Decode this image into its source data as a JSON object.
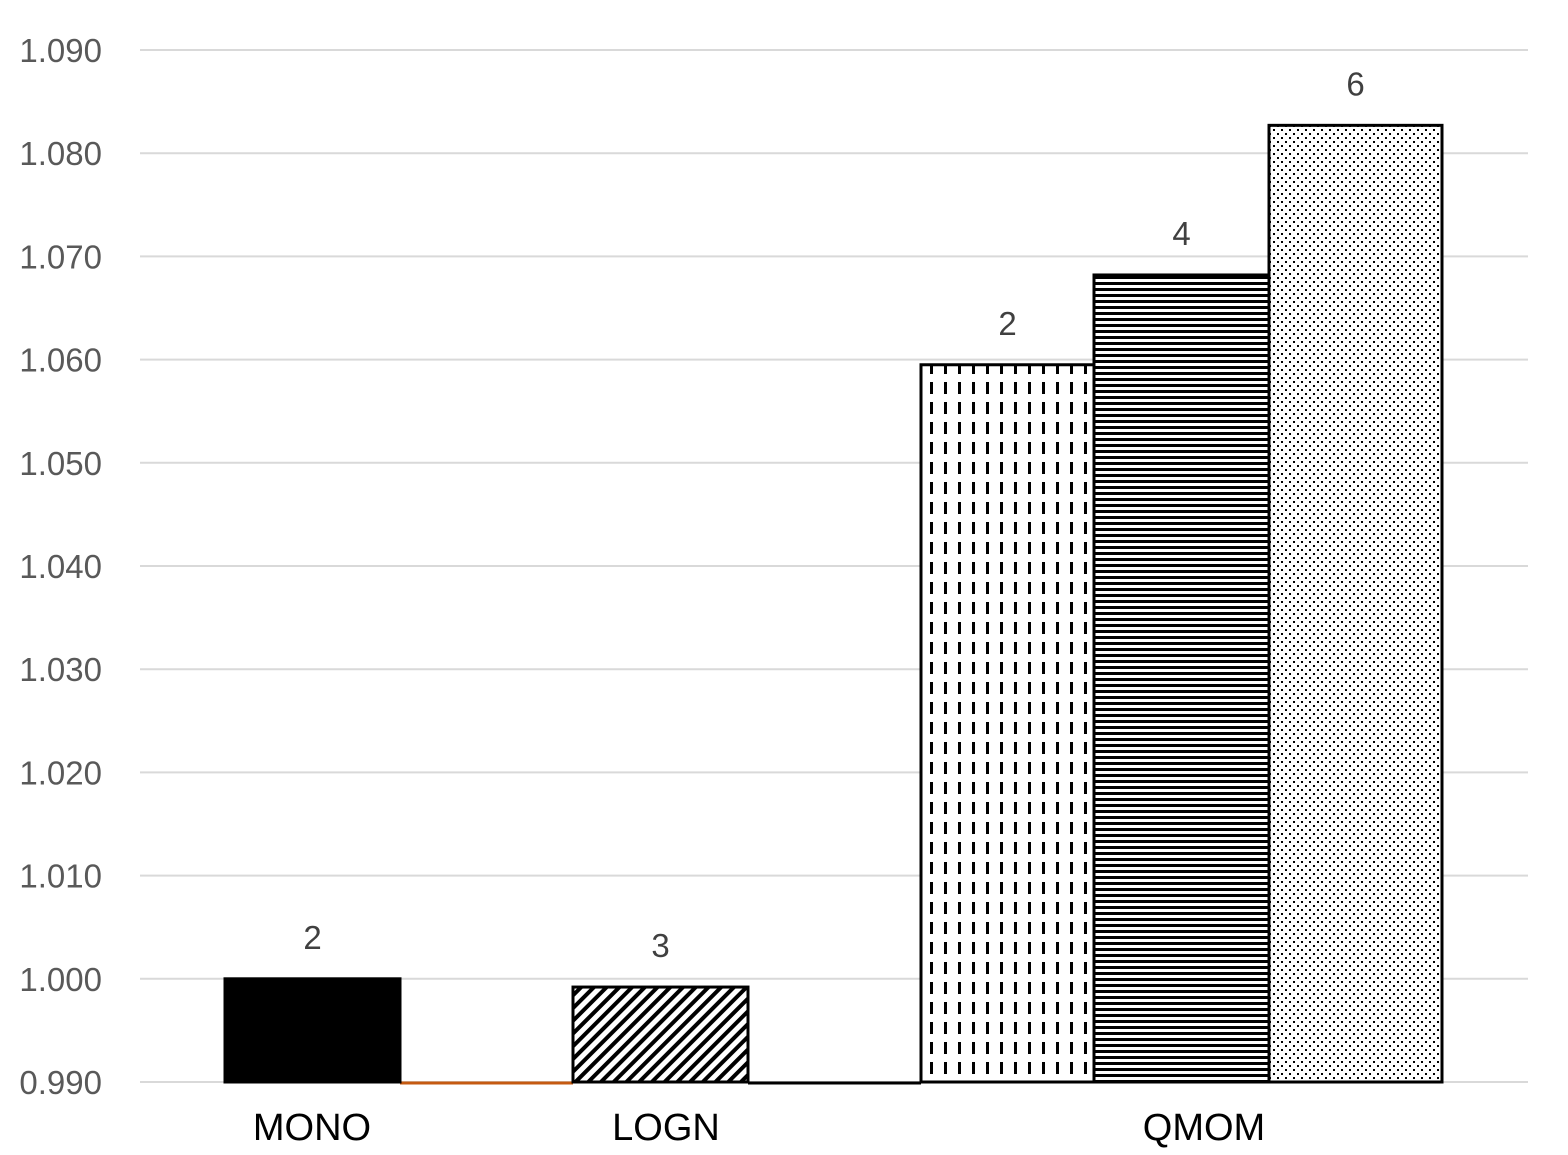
{
  "chart_data": {
    "type": "bar",
    "title": "",
    "xlabel": "",
    "ylabel": "",
    "ylim": [
      0.99,
      1.09
    ],
    "yticks": [
      "0.990",
      "1.000",
      "1.010",
      "1.020",
      "1.030",
      "1.040",
      "1.050",
      "1.060",
      "1.070",
      "1.080",
      "1.090"
    ],
    "grid": true,
    "categories": [
      "MONO",
      "LOGN",
      "QMOM"
    ],
    "bars": [
      {
        "category": "MONO",
        "value": 1.0,
        "label": "2",
        "pattern": "solid"
      },
      {
        "category": "LOGN",
        "value": 0.9992,
        "label": "3",
        "pattern": "diagonal"
      },
      {
        "category": "QMOM",
        "value": 1.0595,
        "label": "2",
        "pattern": "vertical-dash"
      },
      {
        "category": "QMOM",
        "value": 1.0682,
        "label": "4",
        "pattern": "horizontal"
      },
      {
        "category": "QMOM",
        "value": 1.0827,
        "label": "6",
        "pattern": "dots"
      }
    ],
    "colors": {
      "bar_outline": "#000000",
      "grid": "#d9d9d9",
      "tick_text": "#595959",
      "baseline_accent": "#c55a11"
    }
  }
}
